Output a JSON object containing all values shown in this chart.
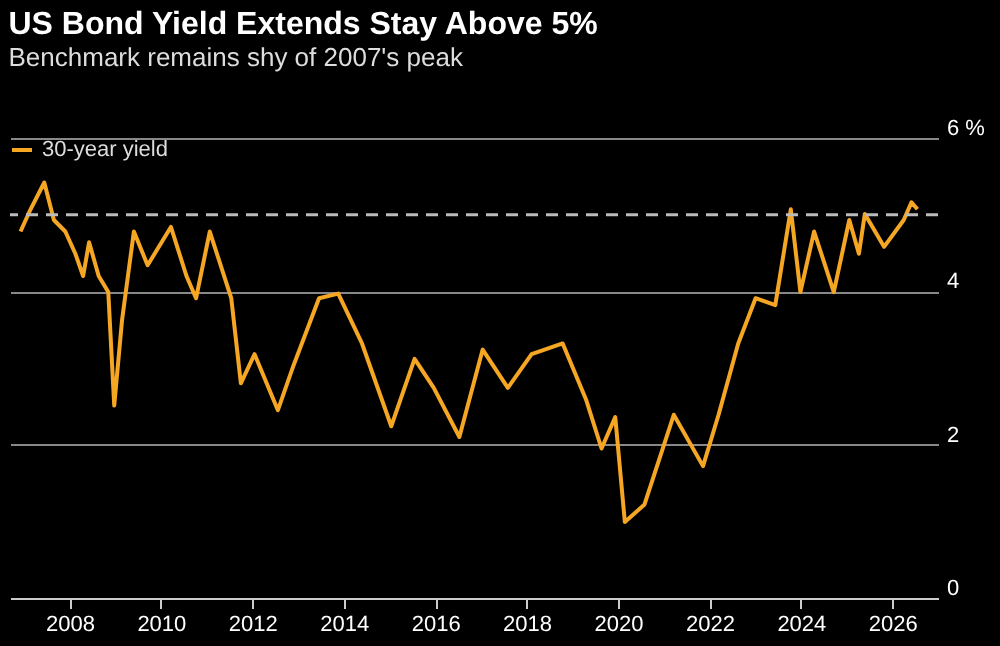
{
  "chart_data": {
    "type": "line",
    "title": "US Bond Yield Extends Stay Above 5%",
    "subtitle": "Benchmark remains shy of 2007's peak",
    "x": [
      2006.93,
      2007.15,
      2007.45,
      2007.66,
      2007.91,
      2008.13,
      2008.3,
      2008.43,
      2008.64,
      2008.85,
      2008.98,
      2009.15,
      2009.41,
      2009.71,
      2010.22,
      2010.56,
      2010.77,
      2011.07,
      2011.54,
      2011.75,
      2012.05,
      2012.56,
      2012.9,
      2013.46,
      2013.88,
      2014.4,
      2015.04,
      2015.55,
      2015.97,
      2016.53,
      2017.04,
      2017.59,
      2018.11,
      2018.79,
      2019.3,
      2019.64,
      2019.94,
      2020.15,
      2020.58,
      2021.22,
      2021.86,
      2022.2,
      2022.63,
      2023.01,
      2023.44,
      2023.78,
      2023.99,
      2024.29,
      2024.72,
      2025.06,
      2025.27,
      2025.4,
      2025.82,
      2026.25,
      2026.42,
      2026.55
    ],
    "series": [
      {
        "name": "30-year yield",
        "color": "#f5a623",
        "values": [
          4.78,
          5.07,
          5.42,
          4.93,
          4.78,
          4.49,
          4.2,
          4.64,
          4.2,
          3.99,
          2.51,
          3.62,
          4.78,
          4.34,
          4.84,
          4.2,
          3.91,
          4.78,
          3.91,
          2.8,
          3.18,
          2.45,
          3.03,
          3.91,
          3.97,
          3.32,
          2.24,
          3.12,
          2.74,
          2.1,
          3.24,
          2.74,
          3.18,
          3.32,
          2.59,
          1.95,
          2.36,
          0.99,
          1.22,
          2.39,
          1.72,
          2.39,
          3.32,
          3.91,
          3.82,
          5.07,
          3.99,
          4.78,
          3.99,
          4.93,
          4.49,
          5.01,
          4.58,
          4.93,
          5.16,
          5.07
        ]
      }
    ],
    "xlim": [
      2006.7,
      2027.0
    ],
    "xticks": [
      2008,
      2010,
      2012,
      2014,
      2016,
      2018,
      2020,
      2022,
      2024,
      2026
    ],
    "ylim": [
      0,
      6
    ],
    "yticks": [
      0,
      2,
      4,
      {
        "value": 6,
        "label": "6 %"
      }
    ],
    "ref_lines": [
      {
        "axis": "y",
        "value": 5,
        "color": "#bbbbbb",
        "line_style": "dashed"
      }
    ],
    "grid": "y",
    "legend": "top left"
  }
}
